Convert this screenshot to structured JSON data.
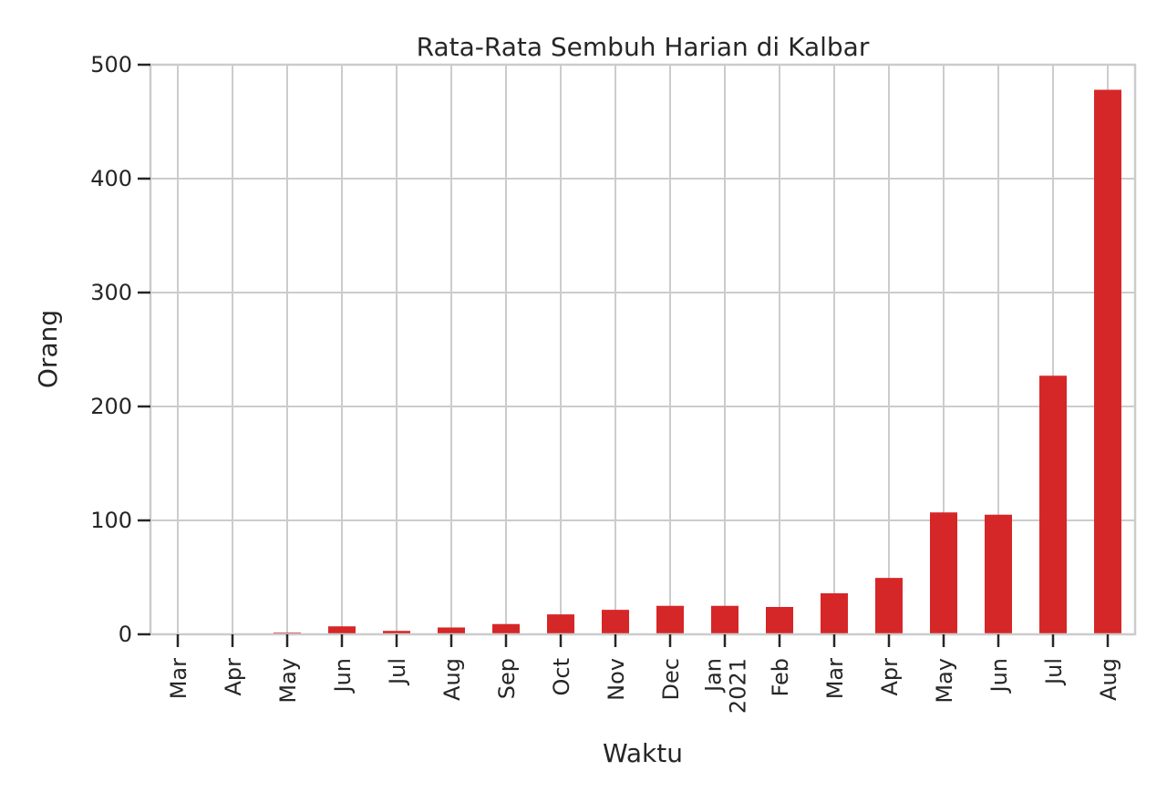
{
  "chart_data": {
    "type": "bar",
    "title": "Rata-Rata Sembuh Harian di Kalbar",
    "xlabel": "Waktu",
    "ylabel": "Orang",
    "ylim": [
      0,
      500
    ],
    "yticks": [
      0,
      100,
      200,
      300,
      400,
      500
    ],
    "grid": true,
    "legend": "none",
    "bar_color": "#d62728",
    "categories": [
      "Mar",
      "Apr",
      "May",
      "Jun",
      "Jul",
      "Aug",
      "Sep",
      "Oct",
      "Nov",
      "Dec",
      "Jan\n2021",
      "Feb",
      "Mar",
      "Apr",
      "May",
      "Jun",
      "Jul",
      "Aug"
    ],
    "values": [
      0.2,
      0.3,
      1.5,
      7,
      3,
      6,
      9,
      17.5,
      21.5,
      25,
      25,
      24,
      36,
      49.5,
      107,
      105,
      227,
      478
    ]
  }
}
